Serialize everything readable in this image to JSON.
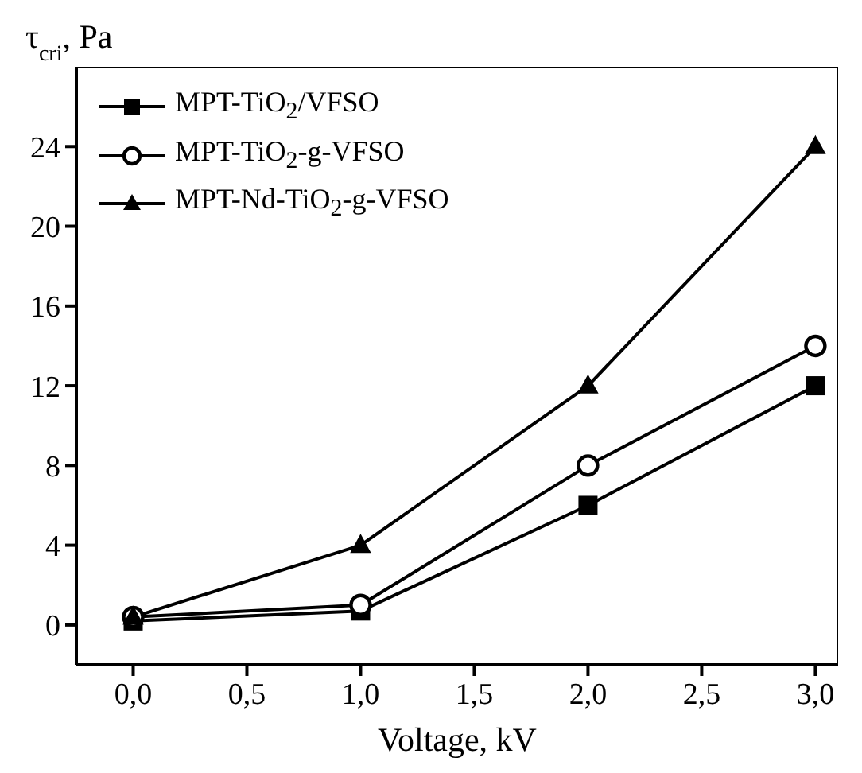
{
  "chart_data": {
    "type": "line",
    "xlabel": "Voltage, kV",
    "ylabel": "τ$_{cri}$, Pa",
    "x": [
      0,
      1,
      2,
      3
    ],
    "xlim": [
      -0.25,
      3.1
    ],
    "xticks": [
      {
        "value": 0,
        "label": "0,0"
      },
      {
        "value": 0.5,
        "label": "0,5"
      },
      {
        "value": 1,
        "label": "1,0"
      },
      {
        "value": 1.5,
        "label": "1,5"
      },
      {
        "value": 2,
        "label": "2,0"
      },
      {
        "value": 2.5,
        "label": "2,5"
      },
      {
        "value": 3,
        "label": "3,0"
      }
    ],
    "ylim": [
      -2,
      28
    ],
    "yticks": [
      0,
      4,
      8,
      12,
      16,
      20,
      24
    ],
    "grid": false,
    "legend": "top left",
    "line_style": "solid",
    "series": [
      {
        "name": "MPT-TiO$_{2}$/VFSO",
        "color": "#000000",
        "marker": "square",
        "values": [
          0.2,
          0.7,
          6,
          12
        ]
      },
      {
        "name": "MPT-TiO$_{2}$-g-VFSO",
        "color": "#000000",
        "marker": "circle",
        "values": [
          0.4,
          1,
          8,
          14
        ]
      },
      {
        "name": "MPT-Nd-TiO$_{2}$-g-VFSO",
        "color": "#000000",
        "marker": "triangle",
        "values": [
          0.4,
          4,
          12,
          24
        ]
      }
    ]
  }
}
